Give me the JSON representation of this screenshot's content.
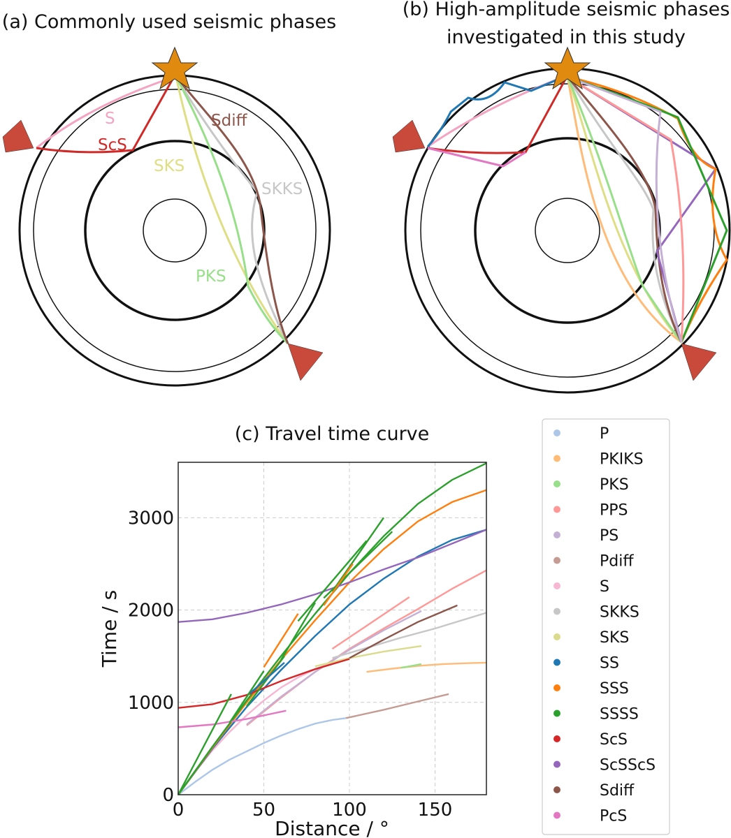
{
  "panel_a": {
    "title": "(a) Commonly used seismic phases",
    "labels": [
      {
        "text": "S",
        "color": "#f4a3c0"
      },
      {
        "text": "ScS",
        "color": "#d02a28"
      },
      {
        "text": "SKS",
        "color": "#dede84"
      },
      {
        "text": "Sdiff",
        "color": "#8c564b"
      },
      {
        "text": "SKKS",
        "color": "#c7c7c7"
      },
      {
        "text": "PKS",
        "color": "#98df8a"
      }
    ]
  },
  "panel_b": {
    "title_line1": "(b) High-amplitude seismic phases",
    "title_line2": "investigated in this study"
  },
  "colors": {
    "earthquake_star": "#e08a10",
    "station": "#c9493a"
  },
  "chart_data": {
    "type": "line",
    "title": "(c) Travel time curve",
    "xlabel": "Distance / °",
    "ylabel": "Time / s",
    "xlim": [
      0,
      180
    ],
    "ylim": [
      0,
      3600
    ],
    "xticks": [
      0,
      50,
      100,
      150
    ],
    "yticks": [
      0,
      1000,
      2000,
      3000
    ],
    "grid": true,
    "legend_position": "right",
    "series": [
      {
        "name": "P",
        "color": "#aec7e8",
        "x": [
          0,
          10,
          20,
          30,
          40,
          50,
          60,
          70,
          80,
          90,
          98
        ],
        "y": [
          0,
          140,
          270,
          380,
          470,
          560,
          640,
          710,
          770,
          810,
          830
        ]
      },
      {
        "name": "PKIKS",
        "color": "#ffbb78",
        "x": [
          110,
          125,
          140,
          155,
          170,
          180
        ],
        "y": [
          1330,
          1365,
          1395,
          1415,
          1425,
          1430
        ]
      },
      {
        "name": "PKS",
        "color": "#98df8a",
        "x": [
          130,
          135,
          142
        ],
        "y": [
          1375,
          1390,
          1415
        ]
      },
      {
        "name": "PPS",
        "color": "#ff9896",
        "x": [
          40,
          60,
          80,
          100,
          120,
          140,
          160,
          180
        ],
        "y": [
          750,
          1050,
          1330,
          1580,
          1800,
          2010,
          2230,
          2430
        ]
      },
      {
        "name": "PS",
        "color": "#c5b0d5",
        "x": [
          40,
          60,
          80,
          100,
          120,
          142
        ],
        "y": [
          760,
          1060,
          1330,
          1570,
          1780,
          1990
        ]
      },
      {
        "name": "Pdiff",
        "color": "#c49c94",
        "x": [
          98,
          120,
          140,
          158
        ],
        "y": [
          830,
          920,
          1010,
          1090
        ]
      },
      {
        "name": "S",
        "color": "#f7b6d2",
        "x": [
          0,
          10,
          20,
          30,
          40,
          50,
          60,
          70,
          80,
          90,
          100
        ],
        "y": [
          0,
          250,
          480,
          680,
          860,
          1020,
          1160,
          1270,
          1360,
          1430,
          1480
        ]
      },
      {
        "name": "SKKS",
        "color": "#c7c7c7",
        "x": [
          90,
          110,
          130,
          150,
          180
        ],
        "y": [
          1480,
          1590,
          1700,
          1800,
          1970
        ]
      },
      {
        "name": "SKS",
        "color": "#dbdb8d",
        "x": [
          80,
          100,
          120,
          142
        ],
        "y": [
          1390,
          1480,
          1550,
          1610
        ]
      },
      {
        "name": "SS",
        "color": "#1f77b4",
        "x": [
          0,
          20,
          40,
          60,
          80,
          100,
          120,
          140,
          160,
          180
        ],
        "y": [
          0,
          500,
          950,
          1350,
          1720,
          2060,
          2340,
          2580,
          2760,
          2870
        ]
      },
      {
        "name": "SSS",
        "color": "#ff7f0e",
        "x": [
          0,
          20,
          40,
          60,
          80,
          100,
          120,
          140,
          160,
          180
        ],
        "y": [
          0,
          510,
          1000,
          1460,
          1890,
          2300,
          2660,
          2960,
          3170,
          3300
        ]
      },
      {
        "name": "SSSS",
        "color": "#2ca02c",
        "x": [
          0,
          20,
          40,
          60,
          80,
          100,
          120,
          140,
          160,
          180
        ],
        "y": [
          0,
          520,
          1020,
          1500,
          1960,
          2400,
          2800,
          3150,
          3410,
          3590
        ]
      },
      {
        "name": "ScS",
        "color": "#d62728",
        "x": [
          0,
          20,
          40,
          60,
          80,
          100
        ],
        "y": [
          940,
          980,
          1080,
          1230,
          1360,
          1470
        ]
      },
      {
        "name": "ScSScS",
        "color": "#9467bd",
        "x": [
          0,
          20,
          40,
          60,
          80,
          100,
          120,
          140,
          160,
          180
        ],
        "y": [
          1870,
          1900,
          1970,
          2060,
          2170,
          2300,
          2440,
          2570,
          2720,
          2870
        ]
      },
      {
        "name": "Sdiff",
        "color": "#8c564b",
        "x": [
          100,
          120,
          140,
          163
        ],
        "y": [
          1480,
          1680,
          1870,
          2050
        ]
      },
      {
        "name": "PcS",
        "color": "#e377c2",
        "x": [
          0,
          20,
          40,
          63
        ],
        "y": [
          730,
          760,
          820,
          910
        ]
      }
    ],
    "extra_segments": [
      {
        "color": "#2ca02c",
        "x": [
          0,
          31
        ],
        "y": [
          0,
          1090
        ]
      },
      {
        "color": "#2ca02c",
        "x": [
          30,
          50
        ],
        "y": [
          780,
          1340
        ]
      },
      {
        "color": "#2ca02c",
        "x": [
          40,
          62
        ],
        "y": [
          960,
          1500
        ]
      },
      {
        "color": "#2ca02c",
        "x": [
          60,
          80
        ],
        "y": [
          1460,
          2080
        ]
      },
      {
        "color": "#2ca02c",
        "x": [
          70,
          110
        ],
        "y": [
          1880,
          2750
        ]
      },
      {
        "color": "#2ca02c",
        "x": [
          85,
          125
        ],
        "y": [
          2130,
          2850
        ]
      },
      {
        "color": "#2ca02c",
        "x": [
          90,
          120
        ],
        "y": [
          2200,
          3000
        ]
      },
      {
        "color": "#ff7f0e",
        "x": [
          50,
          70
        ],
        "y": [
          1380,
          1960
        ]
      },
      {
        "color": "#ff7f0e",
        "x": [
          85,
          102
        ],
        "y": [
          2050,
          2500
        ]
      },
      {
        "color": "#1f77b4",
        "x": [
          42,
          62
        ],
        "y": [
          1100,
          1430
        ]
      },
      {
        "color": "#ff9896",
        "x": [
          90,
          135
        ],
        "y": [
          1580,
          2140
        ]
      }
    ]
  }
}
